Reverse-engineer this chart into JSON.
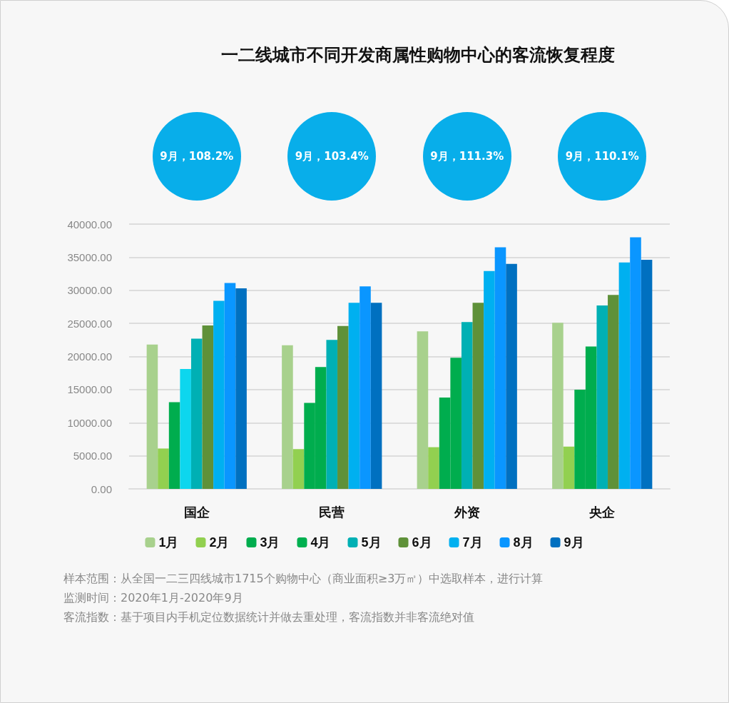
{
  "chart_data": {
    "type": "bar",
    "title": "一二线城市不同开发商属性购物中心的客流恢复程度",
    "categories": [
      "国企",
      "民营",
      "外资",
      "央企"
    ],
    "series": [
      {
        "name": "1月",
        "color": "#a8d18d",
        "values": [
          21800,
          21700,
          23800,
          25100
        ]
      },
      {
        "name": "2月",
        "color": "#92d050",
        "values": [
          6100,
          6000,
          6300,
          6400
        ]
      },
      {
        "name": "3月",
        "color": "#00ad4e",
        "values": [
          13100,
          13000,
          13800,
          15000
        ]
      },
      {
        "name": "4月",
        "color": "#00b050",
        "colors": [
          "#0dd6ee",
          "#00ad4e",
          "#00ad4e",
          "#00ad4e"
        ],
        "values": [
          18100,
          18400,
          19800,
          21500
        ]
      },
      {
        "name": "5月",
        "color": "#00b0b4",
        "values": [
          22700,
          22500,
          25200,
          27700
        ]
      },
      {
        "name": "6月",
        "color": "#5f9139",
        "values": [
          24700,
          24600,
          28100,
          29300
        ]
      },
      {
        "name": "7月",
        "color": "#00b0f0",
        "values": [
          28400,
          28100,
          32900,
          34200
        ]
      },
      {
        "name": "8月",
        "color": "#0a96ff",
        "values": [
          31100,
          30600,
          36500,
          38000
        ]
      },
      {
        "name": "9月",
        "color": "#0070c0",
        "values": [
          30300,
          28100,
          34000,
          34600
        ]
      }
    ],
    "ylim": [
      0,
      40000
    ],
    "yticks": [
      {
        "value": 0,
        "label": "0.00"
      },
      {
        "value": 5000,
        "label": "5000.00"
      },
      {
        "value": 10000,
        "label": "10000.00"
      },
      {
        "value": 15000,
        "label": "15000.00"
      },
      {
        "value": 20000,
        "label": "20000.00"
      },
      {
        "value": 25000,
        "label": "25000.00"
      },
      {
        "value": 30000,
        "label": "30000.00"
      },
      {
        "value": 35000,
        "label": "35000.00"
      },
      {
        "value": 40000,
        "label": "40000.00"
      }
    ],
    "grid": "y",
    "legend": "bottom",
    "annotations": [
      "9月，108.2%",
      "9月，103.4%",
      "9月，111.3%",
      "9月，110.1%",
      "样本范围：从全国一二三四线城市1715个购物中心（商业面积≥3万㎡）中选取样本，进行计算",
      "监测时间：2020年1月-2020年9月",
      "客流指数：基于项目内手机定位数据统计并做去重处理，客流指数并非客流绝对值"
    ]
  }
}
